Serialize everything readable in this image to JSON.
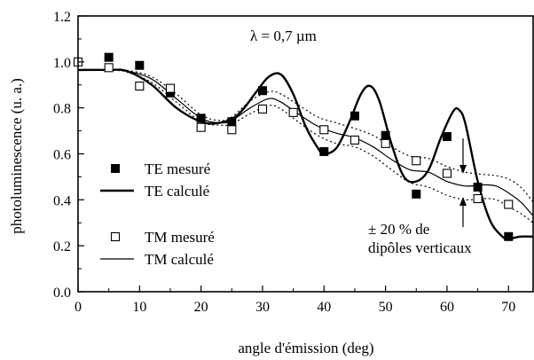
{
  "chart_data": {
    "type": "scatter",
    "xlabel": "angle d'émission (deg)",
    "ylabel": "photoluminescence (u. a.)",
    "xlim": [
      0,
      74
    ],
    "ylim": [
      0.0,
      1.2
    ],
    "x_ticks": [
      0,
      10,
      20,
      30,
      40,
      50,
      60,
      70
    ],
    "y_ticks": [
      "0.0",
      "0.2",
      "0.4",
      "0.6",
      "0.8",
      "1.0",
      "1.2"
    ],
    "annotation_top": "λ = 0,7 µm",
    "annotation_band_line1": "± 20 % de",
    "annotation_band_line2": "dipôles verticaux",
    "legend": [
      {
        "label": "TE mesuré",
        "marker": "filled-square"
      },
      {
        "label": "TE calculé",
        "line": "thick"
      },
      {
        "label": "TM mesuré",
        "marker": "open-square"
      },
      {
        "label": "TM calculé",
        "line": "thin"
      }
    ],
    "series": [
      {
        "name": "TE mesuré",
        "x": [
          5,
          10,
          15,
          20,
          25,
          30,
          40,
          45,
          50,
          55,
          60,
          65,
          70
        ],
        "y": [
          1.02,
          0.985,
          0.865,
          0.755,
          0.74,
          0.875,
          0.61,
          0.765,
          0.68,
          0.425,
          0.675,
          0.455,
          0.24
        ]
      },
      {
        "name": "TM mesuré",
        "x": [
          0,
          5,
          10,
          15,
          20,
          25,
          30,
          35,
          40,
          45,
          50,
          55,
          60,
          65,
          70
        ],
        "y": [
          1.0,
          0.975,
          0.895,
          0.885,
          0.715,
          0.705,
          0.795,
          0.78,
          0.705,
          0.66,
          0.645,
          0.57,
          0.515,
          0.405,
          0.38
        ]
      },
      {
        "name": "TE calculé",
        "x": [
          0,
          5,
          8,
          12,
          16,
          20,
          23,
          26,
          29,
          31,
          33,
          35,
          37,
          39,
          40,
          42,
          44,
          46,
          47.5,
          49,
          51,
          53,
          55,
          57,
          59,
          61,
          62,
          63,
          65,
          67,
          69,
          70,
          71,
          72,
          74
        ],
        "y": [
          0.965,
          0.965,
          0.96,
          0.9,
          0.8,
          0.74,
          0.735,
          0.77,
          0.87,
          0.935,
          0.945,
          0.86,
          0.72,
          0.625,
          0.6,
          0.625,
          0.73,
          0.86,
          0.895,
          0.83,
          0.64,
          0.5,
          0.48,
          0.53,
          0.67,
          0.785,
          0.79,
          0.73,
          0.48,
          0.31,
          0.24,
          0.23,
          0.235,
          0.24,
          0.24
        ]
      },
      {
        "name": "TM calculé",
        "x": [
          0,
          5,
          8,
          12,
          16,
          20,
          23,
          25,
          28,
          31,
          33,
          36,
          39,
          42,
          45,
          48,
          51,
          54,
          57,
          60,
          63,
          66,
          68,
          70,
          72,
          74
        ],
        "y": [
          0.965,
          0.965,
          0.96,
          0.925,
          0.84,
          0.755,
          0.735,
          0.745,
          0.8,
          0.84,
          0.825,
          0.77,
          0.72,
          0.69,
          0.67,
          0.63,
          0.575,
          0.53,
          0.52,
          0.48,
          0.46,
          0.465,
          0.46,
          0.43,
          0.39,
          0.33
        ]
      },
      {
        "name": "TM calculé +20 %",
        "x": [
          0,
          5,
          8,
          12,
          16,
          20,
          23,
          25,
          28,
          31,
          33,
          36,
          39,
          42,
          45,
          48,
          51,
          54,
          57,
          60,
          63,
          66,
          68,
          70,
          72,
          74
        ],
        "y": [
          0.965,
          0.965,
          0.963,
          0.935,
          0.86,
          0.77,
          0.745,
          0.76,
          0.83,
          0.87,
          0.86,
          0.81,
          0.76,
          0.735,
          0.71,
          0.68,
          0.63,
          0.59,
          0.58,
          0.545,
          0.52,
          0.51,
          0.505,
          0.49,
          0.455,
          0.39
        ]
      },
      {
        "name": "TM calculé -20 %",
        "x": [
          0,
          5,
          8,
          12,
          16,
          20,
          23,
          25,
          28,
          31,
          33,
          36,
          39,
          42,
          45,
          48,
          51,
          54,
          57,
          60,
          63,
          66,
          68,
          70,
          72,
          74
        ],
        "y": [
          0.965,
          0.965,
          0.955,
          0.91,
          0.825,
          0.74,
          0.725,
          0.73,
          0.775,
          0.81,
          0.795,
          0.735,
          0.68,
          0.645,
          0.63,
          0.59,
          0.53,
          0.475,
          0.455,
          0.42,
          0.4,
          0.405,
          0.4,
          0.37,
          0.34,
          0.3
        ]
      }
    ]
  }
}
